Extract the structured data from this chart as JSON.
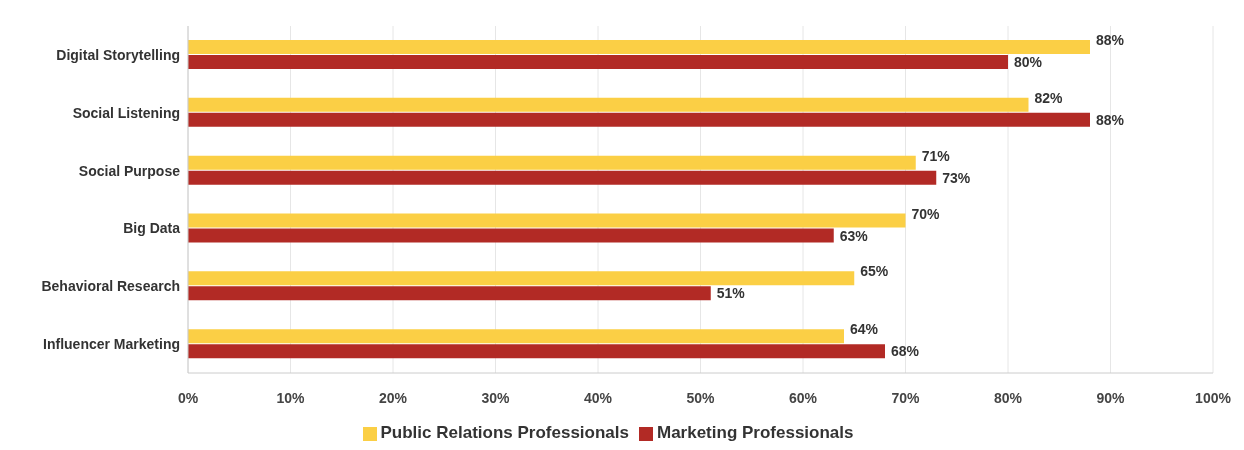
{
  "chart_data": {
    "type": "bar",
    "orientation": "horizontal",
    "categories": [
      "Digital Storytelling",
      "Social Listening",
      "Social Purpose",
      "Big Data",
      "Behavioral Research",
      "Influencer Marketing"
    ],
    "series": [
      {
        "name": "Public Relations Professionals",
        "color": "#fbcf45",
        "values": [
          88,
          82,
          71,
          70,
          65,
          64
        ],
        "value_labels": [
          "88%",
          "82%",
          "71%",
          "70%",
          "65%",
          "64%"
        ]
      },
      {
        "name": "Marketing Professionals",
        "color": "#b22a25",
        "values": [
          80,
          88,
          73,
          63,
          51,
          68
        ],
        "value_labels": [
          "80%",
          "88%",
          "73%",
          "63%",
          "51%",
          "68%"
        ]
      }
    ],
    "xlim": [
      0,
      100
    ],
    "xticks": [
      {
        "value": 0,
        "label": "0%"
      },
      {
        "value": 10,
        "label": "10%"
      },
      {
        "value": 20,
        "label": "20%"
      },
      {
        "value": 30,
        "label": "30%"
      },
      {
        "value": 40,
        "label": "40%"
      },
      {
        "value": 50,
        "label": "50%"
      },
      {
        "value": 60,
        "label": "60%"
      },
      {
        "value": 70,
        "label": "70%"
      },
      {
        "value": 80,
        "label": "80%"
      },
      {
        "value": 90,
        "label": "90%"
      },
      {
        "value": 100,
        "label": "100%"
      }
    ],
    "grid": "x",
    "legend": "bottom"
  }
}
